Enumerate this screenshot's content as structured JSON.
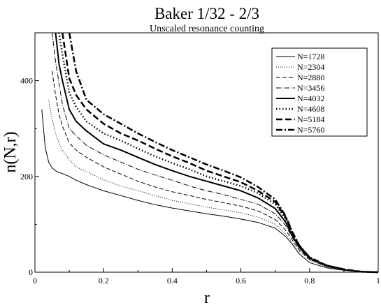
{
  "chart_data": {
    "type": "line",
    "title": "Baker 1/32 - 2/3",
    "subtitle": "Unscaled resonance counting",
    "xlabel": "r",
    "ylabel": "n(N,r)",
    "xlim": [
      0,
      1
    ],
    "ylim": [
      0,
      500
    ],
    "xticks": [
      "0",
      "0.2",
      "0.4",
      "0.6",
      "0.8",
      "1"
    ],
    "yticks": [
      "0",
      "200",
      "400"
    ],
    "grid": false,
    "legend_position": "top-right",
    "x": [
      0.02,
      0.03,
      0.04,
      0.05,
      0.06,
      0.07,
      0.08,
      0.1,
      0.12,
      0.15,
      0.2,
      0.25,
      0.3,
      0.35,
      0.4,
      0.45,
      0.5,
      0.55,
      0.6,
      0.65,
      0.7,
      0.73,
      0.75,
      0.77,
      0.8,
      0.85,
      0.9,
      0.95,
      1.0
    ],
    "series": [
      {
        "name": "N=1728",
        "values": [
          340,
          260,
          230,
          218,
          212,
          208,
          206,
          200,
          192,
          183,
          170,
          160,
          150,
          141,
          134,
          128,
          122,
          117,
          111,
          104,
          92,
          75,
          58,
          38,
          20,
          9,
          4,
          1,
          0
        ]
      },
      {
        "name": "N=2304",
        "values": [
          null,
          null,
          360,
          320,
          290,
          270,
          255,
          235,
          220,
          210,
          193,
          180,
          170,
          160,
          150,
          143,
          136,
          130,
          124,
          115,
          100,
          80,
          62,
          44,
          25,
          11,
          5,
          1,
          0
        ]
      },
      {
        "name": "N=2880",
        "values": [
          null,
          null,
          null,
          420,
          370,
          330,
          305,
          270,
          255,
          240,
          220,
          205,
          190,
          178,
          168,
          160,
          152,
          145,
          138,
          128,
          110,
          88,
          67,
          47,
          27,
          12,
          5,
          1,
          0
        ]
      },
      {
        "name": "N=3456",
        "values": [
          null,
          null,
          null,
          500,
          440,
          395,
          350,
          300,
          285,
          265,
          245,
          230,
          215,
          203,
          192,
          180,
          170,
          162,
          152,
          142,
          122,
          98,
          72,
          50,
          28,
          13,
          5,
          1,
          0
        ]
      },
      {
        "name": "N=4032",
        "values": [
          null,
          null,
          null,
          null,
          500,
          435,
          400,
          340,
          315,
          295,
          268,
          255,
          240,
          225,
          212,
          200,
          190,
          180,
          170,
          155,
          133,
          105,
          76,
          52,
          29,
          13,
          5,
          1,
          0
        ]
      },
      {
        "name": "N=4608",
        "values": [
          null,
          null,
          null,
          null,
          null,
          500,
          455,
          375,
          345,
          315,
          290,
          275,
          258,
          242,
          228,
          215,
          200,
          190,
          180,
          165,
          142,
          112,
          80,
          54,
          30,
          14,
          6,
          1,
          0
        ]
      },
      {
        "name": "N=5184",
        "values": [
          null,
          null,
          null,
          null,
          null,
          null,
          500,
          405,
          370,
          340,
          310,
          290,
          275,
          258,
          242,
          228,
          212,
          200,
          188,
          170,
          147,
          115,
          82,
          55,
          31,
          14,
          6,
          1,
          0
        ]
      },
      {
        "name": "N=5760",
        "values": [
          null,
          null,
          null,
          null,
          null,
          null,
          null,
          500,
          420,
          360,
          330,
          310,
          290,
          272,
          255,
          240,
          225,
          212,
          198,
          178,
          152,
          118,
          84,
          56,
          31,
          14,
          6,
          1,
          0
        ]
      }
    ],
    "line_styles": [
      "solid-thin",
      "dotted-thin",
      "dashed-thin",
      "dashdot-thin",
      "solid-thick",
      "dotted-thick",
      "dashed-thick",
      "dashdot-thick"
    ]
  }
}
